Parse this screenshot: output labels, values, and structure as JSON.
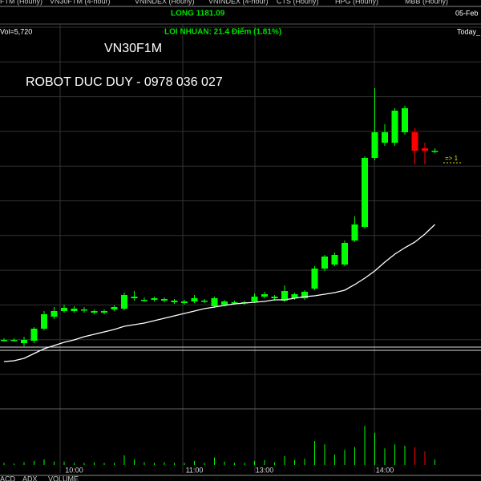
{
  "header": {
    "tabs": [
      "FTM (Hourly)",
      "VN30FTM (4-hour)",
      "VNINDEX (Hourly)",
      "VNINDEX (4-hour)",
      "CTS (Hourly)",
      "HPG (Hourly)",
      "MBB (Hourly)"
    ],
    "position": "LONG  1181.09",
    "date": "05-Feb",
    "volume": "Vol=5,720",
    "profit": "LOI NHUAN: 21.4 Điểm  (1.81%)",
    "today": "Today_",
    "price_marker": "=>  1",
    "bottom_tabs": [
      "ACD",
      "ADX",
      "VOLUME"
    ]
  },
  "chart_data": {
    "type": "candlestick",
    "title": "VN30F1M",
    "subtitle": "ROBOT DUC DUY - 0978 036 027",
    "categories": [
      null,
      null,
      null,
      null,
      null,
      null,
      null,
      "10:00",
      null,
      null,
      null,
      null,
      null,
      null,
      null,
      null,
      null,
      null,
      null,
      "11:00",
      null,
      null,
      null,
      null,
      null,
      null,
      "13:00",
      null,
      null,
      null,
      null,
      null,
      null,
      null,
      null,
      null,
      null,
      null,
      "14:00",
      null,
      null,
      null,
      null,
      null
    ],
    "open": [
      1158.6,
      1158.6,
      1158.2,
      1158.5,
      1160.0,
      1161.5,
      1162.2,
      1162.2,
      1162.4,
      1162.0,
      1162.0,
      1162.4,
      1162.5,
      1163.8,
      1163.6,
      1163.6,
      1163.5,
      1163.3,
      1163.2,
      1163.4,
      1163.4,
      1162.8,
      1163.0,
      1163.2,
      1163.2,
      1163.4,
      1164.0,
      1163.8,
      1163.5,
      1163.8,
      1163.8,
      1165.0,
      1167.5,
      1168.0,
      1168.0,
      1171.0,
      1172.7,
      1181.3,
      1183.2,
      1183.2,
      1184.5,
      1184.5,
      1182.5,
      1182.2
    ],
    "high": [
      1158.8,
      1158.8,
      1159.0,
      1160.2,
      1162.2,
      1162.7,
      1163.0,
      1162.8,
      1162.7,
      1162.4,
      1162.4,
      1162.9,
      1164.5,
      1164.7,
      1163.9,
      1164.0,
      1163.9,
      1163.7,
      1163.6,
      1164.2,
      1163.7,
      1164.0,
      1163.6,
      1163.5,
      1163.5,
      1164.4,
      1164.6,
      1164.2,
      1165.4,
      1164.5,
      1164.8,
      1167.8,
      1169.2,
      1169.5,
      1171.0,
      1174.0,
      1181.5,
      1190.0,
      1185.5,
      1187.5,
      1187.8,
      1185.0,
      1183.2,
      1182.5
    ],
    "low": [
      1158.4,
      1158.4,
      1157.8,
      1158.2,
      1159.8,
      1161.2,
      1162.0,
      1162.0,
      1162.0,
      1161.8,
      1161.8,
      1162.2,
      1162.3,
      1163.5,
      1163.4,
      1163.4,
      1163.3,
      1163.1,
      1163.0,
      1163.2,
      1163.2,
      1162.6,
      1162.8,
      1163.0,
      1163.0,
      1163.2,
      1163.8,
      1163.5,
      1163.3,
      1163.6,
      1163.6,
      1164.8,
      1167.2,
      1167.8,
      1167.8,
      1170.8,
      1172.5,
      1181.0,
      1182.8,
      1182.8,
      1184.2,
      1180.5,
      1180.5,
      1181.9
    ],
    "close": [
      1158.6,
      1158.6,
      1158.6,
      1160.0,
      1161.8,
      1162.2,
      1162.6,
      1162.5,
      1162.4,
      1162.2,
      1162.2,
      1162.7,
      1164.2,
      1164.0,
      1163.6,
      1163.8,
      1163.7,
      1163.5,
      1163.4,
      1163.8,
      1163.5,
      1163.8,
      1163.4,
      1163.3,
      1163.3,
      1164.0,
      1164.3,
      1164.0,
      1164.7,
      1164.3,
      1164.6,
      1167.5,
      1169.0,
      1169.2,
      1170.7,
      1173.0,
      1181.3,
      1184.5,
      1184.5,
      1187.2,
      1187.5,
      1182.2,
      1182.2,
      1182.2
    ],
    "ma": [
      1155.9,
      1156.0,
      1156.3,
      1156.9,
      1157.5,
      1157.9,
      1158.3,
      1158.6,
      1159.0,
      1159.3,
      1159.6,
      1159.9,
      1160.3,
      1160.5,
      1160.7,
      1161.0,
      1161.3,
      1161.6,
      1161.9,
      1162.2,
      1162.5,
      1162.7,
      1162.9,
      1163.1,
      1163.2,
      1163.3,
      1163.4,
      1163.6,
      1163.6,
      1163.8,
      1164.0,
      1164.1,
      1164.3,
      1164.5,
      1164.8,
      1165.5,
      1166.3,
      1167.2,
      1168.3,
      1169.3,
      1170.1,
      1170.8,
      1171.8,
      1173.0
    ],
    "volume": [
      300,
      200,
      400,
      600,
      800,
      500,
      500,
      300,
      300,
      400,
      300,
      300,
      1400,
      800,
      400,
      300,
      400,
      300,
      300,
      600,
      300,
      1100,
      500,
      300,
      300,
      600,
      700,
      400,
      1300,
      700,
      900,
      3500,
      3000,
      1500,
      2200,
      2600,
      5700,
      4700,
      2400,
      3000,
      2800,
      2600,
      2000,
      800
    ],
    "up_color": "#00ff00",
    "down_color": "#ff0000",
    "ma_color": "#ffffff",
    "ylim": [
      1150,
      1196
    ],
    "volume_lim": [
      0,
      7000
    ]
  }
}
